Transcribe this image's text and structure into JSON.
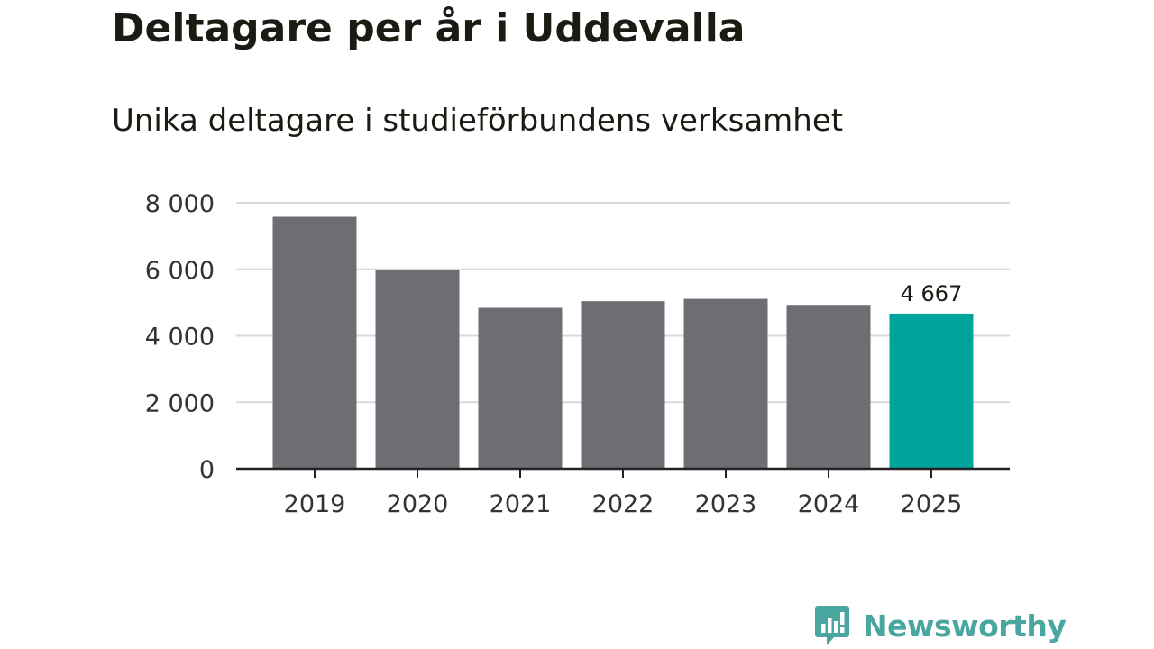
{
  "header": {
    "title": "Deltagare per år i Uddevalla",
    "subtitle": "Unika deltagare i studieförbundens verksamhet"
  },
  "chart_data": {
    "type": "bar",
    "title": "Deltagare per år i Uddevalla",
    "subtitle": "Unika deltagare i studieförbundens verksamhet",
    "xlabel": "",
    "ylabel": "",
    "categories": [
      "2019",
      "2020",
      "2021",
      "2022",
      "2023",
      "2024",
      "2025"
    ],
    "values": [
      7580,
      5980,
      4840,
      5040,
      5110,
      4930,
      4667
    ],
    "ylim": [
      0,
      8000
    ],
    "yticks": [
      0,
      2000,
      4000,
      6000,
      8000
    ],
    "ytick_labels": [
      "0",
      "2 000",
      "4 000",
      "6 000",
      "8 000"
    ],
    "grid": true,
    "highlight_index": 6,
    "data_labels": [
      {
        "index": 6,
        "text": "4 667"
      }
    ],
    "colors": {
      "bar": "#6e6d73",
      "highlight": "#00a39b",
      "grid": "#d9d9d9",
      "axis": "#222222",
      "text": "#333333"
    }
  },
  "brand": {
    "name": "Newsworthy",
    "logo_icon": "bar-chart-speech-bubble-icon",
    "color": "#4aa6a0"
  }
}
